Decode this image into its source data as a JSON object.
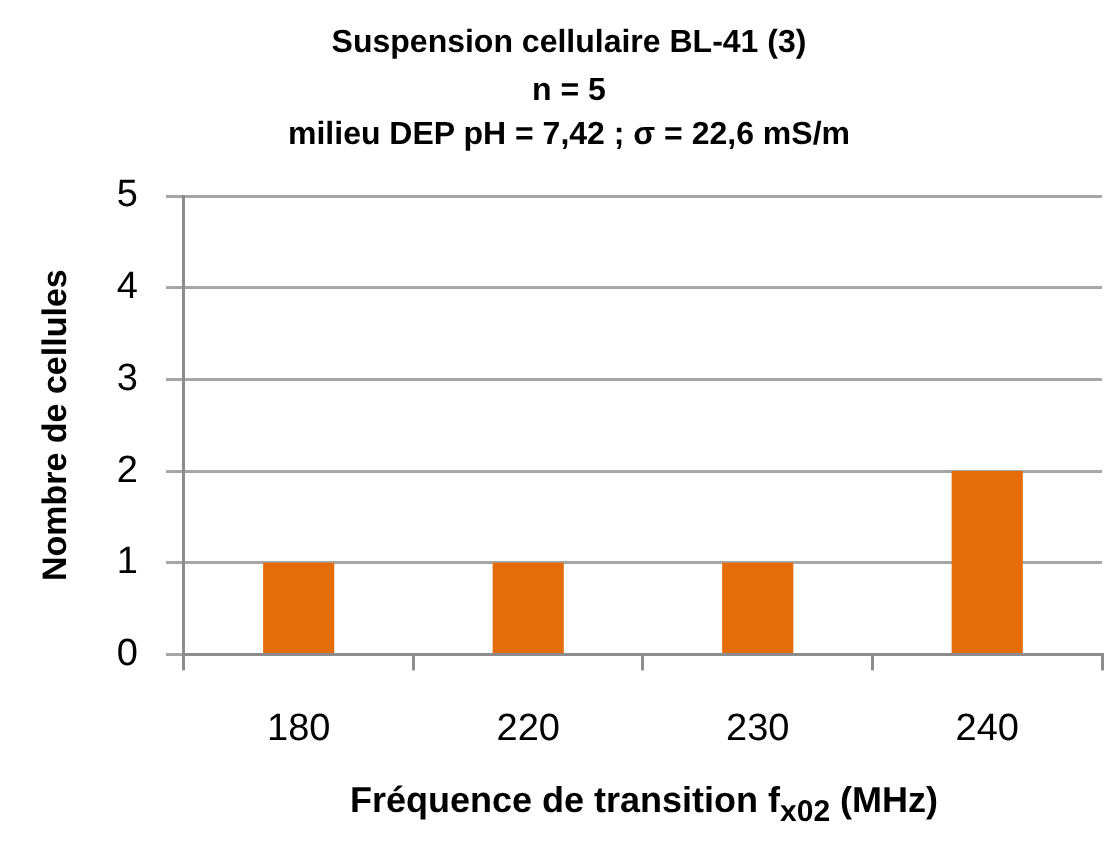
{
  "chart_data": {
    "type": "bar",
    "title": "Suspension cellulaire BL-41 (3)",
    "subtitle": "n = 5\nmilieu DEP pH = 7,42 ; σ = 22,6 mS/m",
    "xlabel": "Fréquence de transition f$_{x02}$ (MHz)",
    "ylabel": "Nombre de cellules",
    "categories": [
      "180",
      "220",
      "230",
      "240"
    ],
    "values": [
      1,
      1,
      1,
      2
    ],
    "color": "#e46c0a",
    "ylim": [
      0,
      5
    ],
    "yticks": [
      0,
      1,
      2,
      3,
      4,
      5
    ],
    "grid": "y"
  }
}
